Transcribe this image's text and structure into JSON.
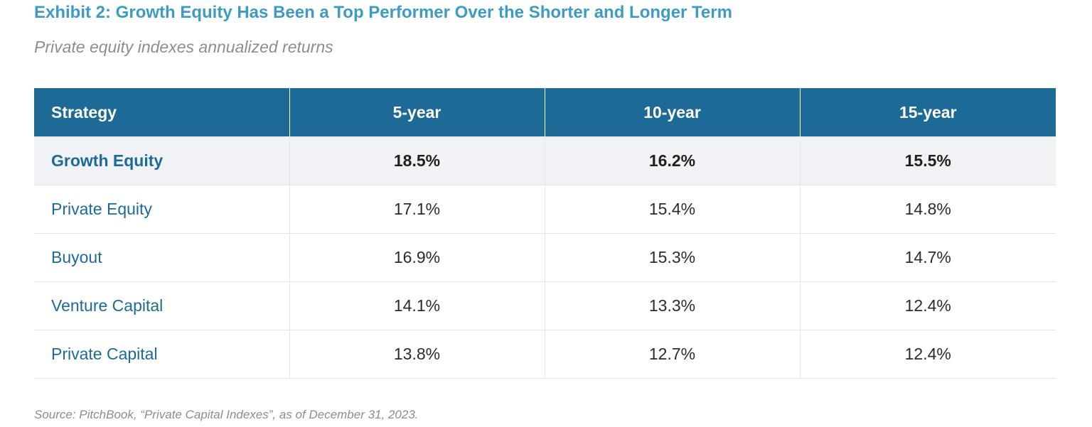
{
  "title": "Exhibit 2: Growth Equity Has Been a Top Performer Over the Shorter and Longer Term",
  "subtitle": "Private equity indexes annualized returns",
  "source": "Source: PitchBook, “Private Capital Indexes”, as of December 31, 2023.",
  "colors": {
    "title": "#3d9bc6",
    "header_bg": "#1d6a97",
    "strategy_text": "#1d6a97",
    "highlight_row_bg": "#f0f2f5"
  },
  "chart_data": {
    "type": "table",
    "columns": [
      "Strategy",
      "5-year",
      "10-year",
      "15-year"
    ],
    "highlighted_row": "Growth Equity",
    "rows": [
      {
        "strategy": "Growth Equity",
        "values": [
          "18.5%",
          "16.2%",
          "15.5%"
        ]
      },
      {
        "strategy": "Private Equity",
        "values": [
          "17.1%",
          "15.4%",
          "14.8%"
        ]
      },
      {
        "strategy": "Buyout",
        "values": [
          "16.9%",
          "15.3%",
          "14.7%"
        ]
      },
      {
        "strategy": "Venture Capital",
        "values": [
          "14.1%",
          "13.3%",
          "12.4%"
        ]
      },
      {
        "strategy": "Private Capital",
        "values": [
          "13.8%",
          "12.7%",
          "12.4%"
        ]
      }
    ]
  }
}
